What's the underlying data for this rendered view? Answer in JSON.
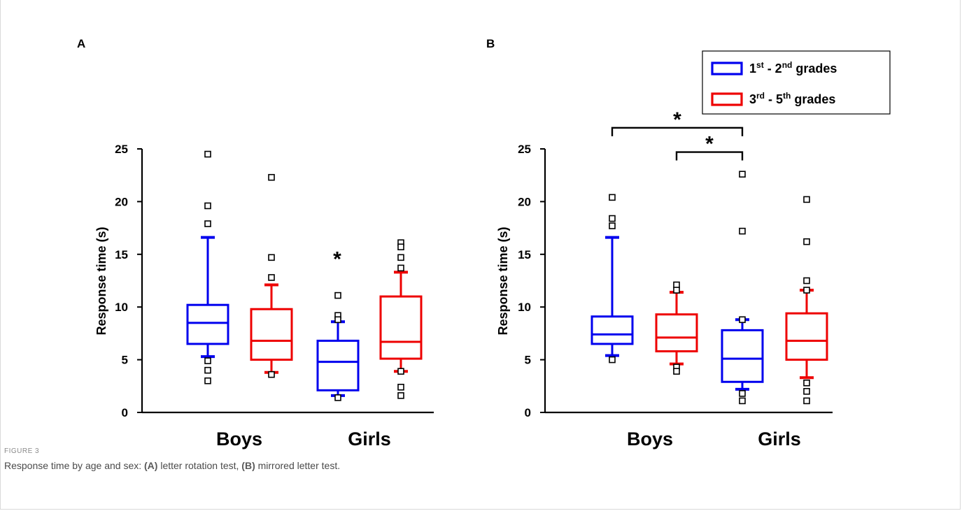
{
  "colors": {
    "group1": "#0000ee",
    "group2": "#ee0000",
    "axis": "#000000"
  },
  "legend": {
    "items": [
      {
        "label_pre": "1",
        "sup1": "st",
        "mid": " - 2",
        "sup2": "nd",
        "post": " grades",
        "color": "#0000ee"
      },
      {
        "label_pre": "3",
        "sup1": "rd",
        "mid": " - 5",
        "sup2": "th",
        "post": " grades",
        "color": "#ee0000"
      }
    ]
  },
  "chart_data": [
    {
      "type": "box",
      "panel_label": "A",
      "ylabel": "Response time (s)",
      "ylim": [
        0,
        25
      ],
      "yticks": [
        "0",
        "5",
        "10",
        "15",
        "20",
        "25"
      ],
      "categories": [
        "Boys",
        "Girls"
      ],
      "series": [
        {
          "name": "1st - 2nd grades",
          "boxes": [
            {
              "category": "Boys",
              "whisker_low": 5.3,
              "q1": 6.5,
              "median": 8.5,
              "q3": 10.2,
              "whisker_high": 16.6,
              "outliers": [
                24.5,
                19.6,
                17.9,
                4.9,
                4.0,
                3.0
              ]
            },
            {
              "category": "Girls",
              "whisker_low": 1.6,
              "q1": 2.1,
              "median": 4.8,
              "q3": 6.8,
              "whisker_high": 8.6,
              "outliers": [
                11.1,
                9.2,
                8.8,
                1.4
              ]
            }
          ]
        },
        {
          "name": "3rd - 5th grades",
          "boxes": [
            {
              "category": "Boys",
              "whisker_low": 3.8,
              "q1": 5.0,
              "median": 6.8,
              "q3": 9.8,
              "whisker_high": 12.1,
              "outliers": [
                22.3,
                14.7,
                12.8,
                3.6
              ]
            },
            {
              "category": "Girls",
              "whisker_low": 3.9,
              "q1": 5.1,
              "median": 6.7,
              "q3": 11.0,
              "whisker_high": 13.3,
              "outliers": [
                16.1,
                15.7,
                14.7,
                13.7,
                3.9,
                2.4,
                1.6
              ]
            }
          ]
        }
      ],
      "annotations": [
        {
          "text": "*",
          "category": "Girls",
          "series": 0,
          "y": 14.7
        }
      ],
      "brackets": []
    },
    {
      "type": "box",
      "panel_label": "B",
      "ylabel": "Response time (s)",
      "ylim": [
        0,
        25
      ],
      "yticks": [
        "0",
        "5",
        "10",
        "15",
        "20",
        "25"
      ],
      "categories": [
        "Boys",
        "Girls"
      ],
      "series": [
        {
          "name": "1st - 2nd grades",
          "boxes": [
            {
              "category": "Boys",
              "whisker_low": 5.4,
              "q1": 6.5,
              "median": 7.4,
              "q3": 9.1,
              "whisker_high": 16.6,
              "outliers": [
                20.4,
                18.4,
                17.7,
                5.0
              ]
            },
            {
              "category": "Girls",
              "whisker_low": 2.2,
              "q1": 2.9,
              "median": 5.1,
              "q3": 7.8,
              "whisker_high": 8.8,
              "outliers": [
                22.6,
                17.2,
                8.8,
                1.8,
                1.1
              ]
            }
          ]
        },
        {
          "name": "3rd - 5th grades",
          "boxes": [
            {
              "category": "Boys",
              "whisker_low": 4.6,
              "q1": 5.8,
              "median": 7.1,
              "q3": 9.3,
              "whisker_high": 11.4,
              "outliers": [
                12.1,
                11.6,
                4.3,
                3.9
              ]
            },
            {
              "category": "Girls",
              "whisker_low": 3.3,
              "q1": 5.0,
              "median": 6.8,
              "q3": 9.4,
              "whisker_high": 11.6,
              "outliers": [
                20.2,
                16.2,
                12.5,
                11.6,
                2.8,
                2.0,
                1.1
              ]
            }
          ]
        }
      ],
      "annotations": [],
      "brackets": [
        {
          "text": "*",
          "from": {
            "category": "Boys",
            "series": 0
          },
          "to": {
            "category": "Girls",
            "series": 0
          },
          "y": 27.0
        },
        {
          "text": "*",
          "from": {
            "category": "Boys",
            "series": 1
          },
          "to": {
            "category": "Girls",
            "series": 0
          },
          "y": 24.7
        }
      ]
    }
  ],
  "caption": {
    "label": "FIGURE 3",
    "text_start": "Response time by age and sex: ",
    "a_label": "(A)",
    "a_text": " letter rotation test, ",
    "b_label": "(B)",
    "b_text": " mirrored letter test."
  }
}
